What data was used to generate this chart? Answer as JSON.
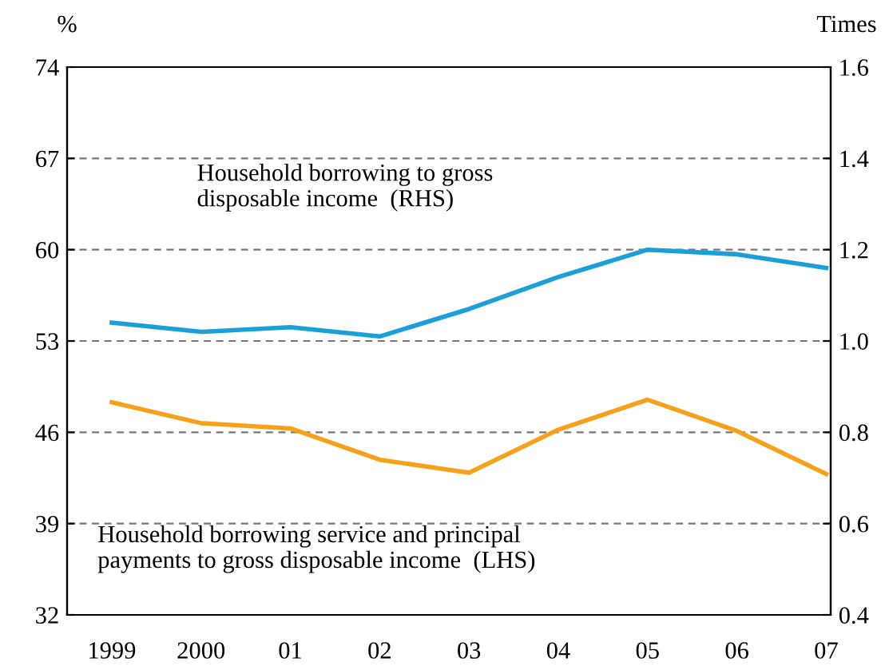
{
  "chart_data": {
    "type": "line",
    "ylabel": "%",
    "y2label": "Times",
    "categories": [
      "1999",
      "2000",
      "01",
      "02",
      "03",
      "04",
      "05",
      "06",
      "07"
    ],
    "ylim": [
      32,
      74
    ],
    "yticks": [
      32,
      39,
      46,
      53,
      60,
      67,
      74
    ],
    "y2lim": [
      0.4,
      1.6
    ],
    "y2ticks": [
      {
        "value": 0.4,
        "label": "0.4"
      },
      {
        "value": 0.6,
        "label": "0.6"
      },
      {
        "value": 0.8,
        "label": "0.8"
      },
      {
        "value": 1.0,
        "label": "1.0"
      },
      {
        "value": 1.2,
        "label": "1.2"
      },
      {
        "value": 1.4,
        "label": "1.4"
      },
      {
        "value": 1.6,
        "label": "1.6"
      }
    ],
    "grid": "y",
    "line_style": "solid",
    "series": [
      {
        "color": "#1a9fd9",
        "axis": "y2",
        "values": [
          1.04,
          1.02,
          1.03,
          1.01,
          1.07,
          1.14,
          1.2,
          1.19,
          1.16
        ]
      },
      {
        "color": "#f7a11a",
        "values": [
          48.3,
          46.7,
          46.3,
          43.9,
          42.9,
          46.2,
          48.5,
          46.1,
          42.8
        ]
      }
    ],
    "annotations": [
      "Household borrowing to gross\ndisposable income  (RHS)",
      "Household borrowing service and principal\npayments to gross disposable income  (LHS)"
    ]
  }
}
